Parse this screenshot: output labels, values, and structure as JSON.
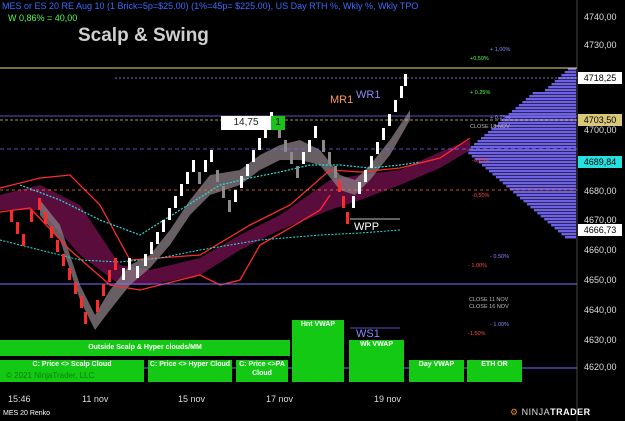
{
  "header": {
    "instrument_line": "MES or ES 20 RE Aug 10 (1 Brick=5p=$25.00) (1%=45p= $225.00), US Day RTH %, Wkly %, Wkly TPO",
    "stat_line": "W 0,86% = 40,00"
  },
  "chart_title": "Scalp & Swing",
  "x_labels": [
    "15:46",
    "11 nov",
    "15 nov",
    "17 nov",
    "19 nov"
  ],
  "y_labels": [
    "4740,00",
    "4730,00",
    "4700,00",
    "4680,00",
    "4670,00",
    "4660,00",
    "4650,00",
    "4640,00",
    "4630,00",
    "4620,00"
  ],
  "y_badges": [
    {
      "text": "4718,25",
      "bg": "#ffffff",
      "fg": "#000000"
    },
    {
      "text": "4703,50",
      "bg": "#d9c77a",
      "fg": "#000000"
    },
    {
      "text": "4689,84",
      "bg": "#24e0e0",
      "fg": "#000000"
    },
    {
      "text": "4666,73",
      "bg": "#ffffff",
      "fg": "#000000"
    }
  ],
  "levels": {
    "plus_100": "+ 1,00%",
    "plus_050": "+0,50%",
    "plus_025": "+ 0.25%",
    "plus_025b": "+ 0,25%",
    "close_18": "CLOSE 18 NOV",
    "minus_025": "-0,25%",
    "minus_050": "-0,50%",
    "minus_050b": "- 0.50%",
    "minus_100": "- 1,00%",
    "close_11": "CLOSE 11 NOV",
    "close_16": "CLOSE 16 NOV",
    "minus_100b": "- 1.00%",
    "minus_150": "-1,50%"
  },
  "annotations": {
    "wr1": "WR1",
    "mr1": "MR1",
    "wpp": "WPP",
    "ws1": "WS1",
    "brick_value": "14,75",
    "brick_count": "1"
  },
  "panels": {
    "outside": "Outside Scalp & Hyper clouds/MM",
    "scalp": "C: Price <> Scalp Cloud",
    "hyper": "C: Price <> Hyper Cloud",
    "pa": "C: Price <>PA Cloud",
    "hnt": "Hnt VWAP",
    "wk": "Wk VWAP",
    "day": "Day VWAP",
    "eth": "ETH OR"
  },
  "footer": {
    "copyright": "© 2021 NinjaTrader, LLC",
    "chart_type": "MES 20 Renko",
    "brand_a": "NINJA",
    "brand_b": "TRADER"
  },
  "colors": {
    "accent_blue": "#3a6cff",
    "green": "#14c914",
    "red": "#ff2a2a",
    "cloud": "#6a0f48",
    "tpo": "#7a6cff"
  }
}
